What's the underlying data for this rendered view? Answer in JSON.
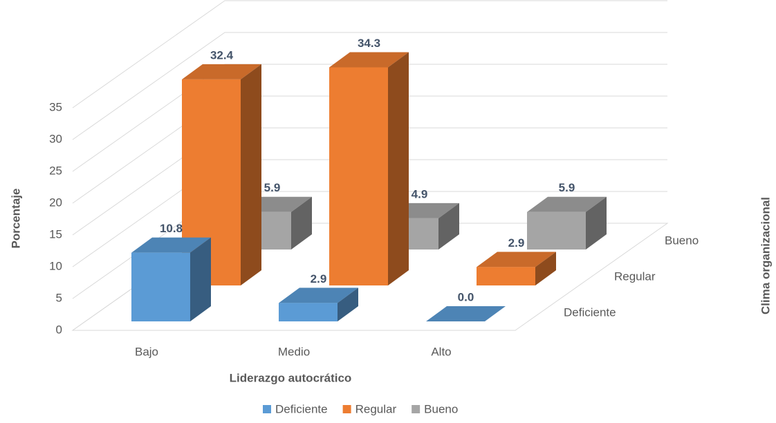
{
  "chart_data": {
    "type": "bar3d",
    "categories": [
      "Bajo",
      "Medio",
      "Alto"
    ],
    "series": [
      {
        "name": "Deficiente",
        "color": "#5b9bd5",
        "values": [
          10.8,
          2.9,
          0.0
        ],
        "value_labels": [
          "10.8",
          "2.9",
          "0.0"
        ]
      },
      {
        "name": "Regular",
        "color": "#ed7d31",
        "values": [
          32.4,
          34.3,
          2.9
        ]
      },
      {
        "name": "Bueno",
        "color": "#a5a5a5",
        "values": [
          5.9,
          4.9,
          5.9
        ]
      }
    ],
    "x_label": "Liderazgo autocrático",
    "y_label": "Porcentaje",
    "z_label": "Clima organizacional",
    "ylim": [
      0,
      45
    ],
    "yticks": [
      0,
      5,
      10,
      15,
      20,
      25,
      30,
      35
    ],
    "grid": true
  }
}
